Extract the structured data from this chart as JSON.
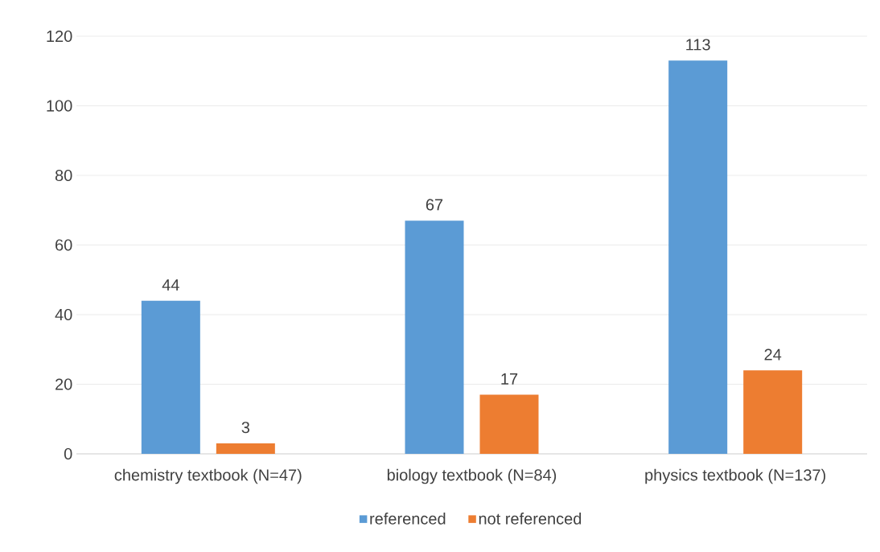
{
  "chart_data": {
    "type": "bar",
    "categories": [
      "chemistry textbook (N=47)",
      "biology textbook (N=84)",
      "physics textbook (N=137)"
    ],
    "series": [
      {
        "name": "referenced",
        "color": "#5b9bd5",
        "values": [
          44,
          67,
          113
        ]
      },
      {
        "name": "not referenced",
        "color": "#ed7d31",
        "values": [
          3,
          17,
          24
        ]
      }
    ],
    "ylim": [
      0,
      120
    ],
    "yticks": [
      0,
      20,
      40,
      60,
      80,
      100,
      120
    ],
    "grid": "y",
    "legend": "bottom",
    "data_labels": true
  }
}
